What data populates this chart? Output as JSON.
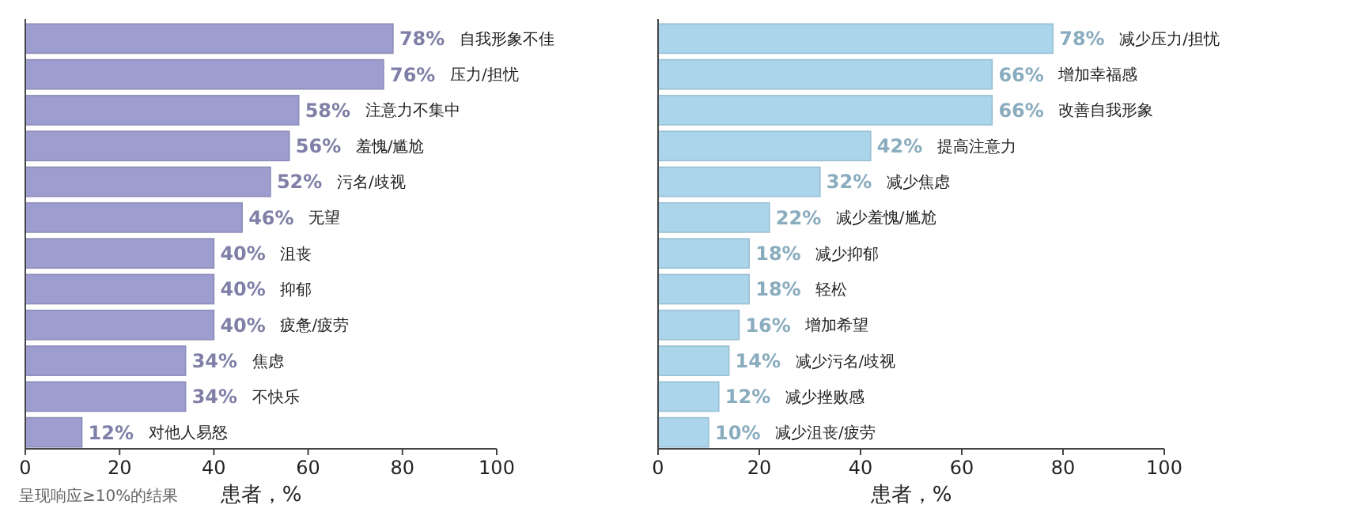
{
  "chart_data": [
    {
      "type": "bar",
      "orientation": "horizontal",
      "categories": [
        "自我形象不佳",
        "压力/担忧",
        "注意力不集中",
        "羞愧/尴尬",
        "污名/歧视",
        "无望",
        "沮丧",
        "抑郁",
        "疲惫/疲劳",
        "焦虑",
        "不快乐",
        "对他人易怒"
      ],
      "values": [
        78,
        76,
        58,
        56,
        52,
        46,
        40,
        40,
        40,
        34,
        34,
        12
      ],
      "value_labels": [
        "78%",
        "76%",
        "58%",
        "56%",
        "52%",
        "46%",
        "40%",
        "40%",
        "40%",
        "34%",
        "34%",
        "12%"
      ],
      "color": "#9d9dcf",
      "xlim": [
        0,
        100
      ],
      "xticks": [
        0,
        20,
        40,
        60,
        80,
        100
      ],
      "xlabel": "患者，%",
      "grid": false,
      "annotations": [
        "呈现响应≥10%的结果"
      ]
    },
    {
      "type": "bar",
      "orientation": "horizontal",
      "categories": [
        "减少压力/担忧",
        "增加幸福感",
        "改善自我形象",
        "提高注意力",
        "减少焦虑",
        "减少羞愧/尴尬",
        "减少抑郁",
        "轻松",
        "增加希望",
        "减少污名/歧视",
        "减少挫败感",
        "减少沮丧/疲劳"
      ],
      "values": [
        78,
        66,
        66,
        42,
        32,
        22,
        18,
        18,
        16,
        14,
        12,
        10
      ],
      "value_labels": [
        "78%",
        "66%",
        "66%",
        "42%",
        "32%",
        "22%",
        "18%",
        "18%",
        "16%",
        "14%",
        "12%",
        "10%"
      ],
      "color": "#aad5eb",
      "xlim": [
        0,
        100
      ],
      "xticks": [
        0,
        20,
        40,
        60,
        80,
        100
      ],
      "xlabel": "患者，%",
      "grid": false
    }
  ]
}
